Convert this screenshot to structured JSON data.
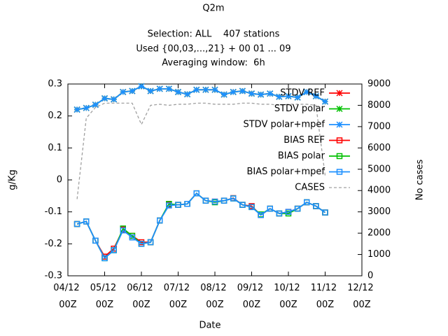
{
  "chart_data": {
    "type": "line",
    "title": "Q2m",
    "subtitles": [
      "Selection: ALL    407 stations",
      "Used {00,03,...,21} + 00 01 ... 09",
      "Averaging window:  6h"
    ],
    "x_label": "Date",
    "y_label": "g/Kg",
    "y2_label": "No cases",
    "x": [
      0.25,
      0.5,
      0.75,
      1,
      1.25,
      1.5,
      1.75,
      2,
      2.25,
      2.5,
      2.75,
      3,
      3.25,
      3.5,
      3.75,
      4,
      4.25,
      4.5,
      4.75,
      5,
      5.25,
      5.5,
      5.75,
      6,
      6.25,
      6.5,
      6.75,
      7
    ],
    "xlim": [
      0,
      8
    ],
    "xticks": [
      {
        "value": 0,
        "label": "04/12 00Z"
      },
      {
        "value": 1,
        "label": "05/12 00Z"
      },
      {
        "value": 2,
        "label": "06/12 00Z"
      },
      {
        "value": 3,
        "label": "07/12 00Z"
      },
      {
        "value": 4,
        "label": "08/12 00Z"
      },
      {
        "value": 5,
        "label": "09/12 00Z"
      },
      {
        "value": 6,
        "label": "10/12 00Z"
      },
      {
        "value": 7,
        "label": "11/12 00Z"
      },
      {
        "value": 8,
        "label": "12/12 00Z"
      }
    ],
    "ylim": [
      -0.3,
      0.3
    ],
    "yticks": [
      -0.3,
      -0.2,
      -0.1,
      0,
      0.1,
      0.2,
      0.3
    ],
    "y2lim": [
      0,
      9000
    ],
    "y2ticks": [
      0,
      1000,
      2000,
      3000,
      4000,
      5000,
      6000,
      7000,
      8000,
      9000
    ],
    "legend": "top-right",
    "grid": false,
    "series": [
      {
        "name": "STDV REF",
        "color": "#ff0000",
        "marker": "cross",
        "values": [
          0.22,
          0.225,
          0.235,
          0.255,
          0.252,
          0.275,
          0.278,
          0.293,
          0.278,
          0.285,
          0.285,
          0.275,
          0.268,
          0.282,
          0.282,
          0.282,
          0.267,
          0.275,
          0.278,
          0.27,
          0.267,
          0.27,
          0.26,
          0.262,
          0.258,
          0.275,
          0.262,
          0.245
        ]
      },
      {
        "name": "STDV polar",
        "color": "#00c000",
        "marker": "cross",
        "values": [
          0.22,
          0.225,
          0.235,
          0.255,
          0.252,
          0.275,
          0.278,
          0.293,
          0.278,
          0.285,
          0.285,
          0.275,
          0.268,
          0.282,
          0.282,
          0.282,
          0.267,
          0.275,
          0.278,
          0.27,
          0.267,
          0.27,
          0.26,
          0.262,
          0.258,
          0.275,
          0.262,
          0.245
        ]
      },
      {
        "name": "STDV polar+mpef",
        "color": "#1e90ff",
        "marker": "cross",
        "values": [
          0.22,
          0.225,
          0.235,
          0.255,
          0.252,
          0.275,
          0.278,
          0.293,
          0.278,
          0.285,
          0.285,
          0.275,
          0.268,
          0.282,
          0.282,
          0.282,
          0.267,
          0.275,
          0.278,
          0.27,
          0.267,
          0.27,
          0.26,
          0.262,
          0.258,
          0.275,
          0.262,
          0.245
        ]
      },
      {
        "name": "BIAS REF",
        "color": "#ff0000",
        "marker": "square",
        "values": [
          -0.138,
          -0.13,
          -0.19,
          -0.24,
          -0.215,
          -0.155,
          -0.175,
          -0.195,
          -0.195,
          -0.127,
          -0.077,
          -0.078,
          -0.075,
          -0.042,
          -0.065,
          -0.068,
          -0.065,
          -0.057,
          -0.078,
          -0.082,
          -0.11,
          -0.09,
          -0.105,
          -0.1,
          -0.09,
          -0.07,
          -0.082,
          -0.102
        ]
      },
      {
        "name": "BIAS polar",
        "color": "#00c000",
        "marker": "square",
        "values": [
          -0.138,
          -0.13,
          -0.19,
          -0.245,
          -0.22,
          -0.152,
          -0.175,
          -0.2,
          -0.195,
          -0.127,
          -0.075,
          -0.078,
          -0.075,
          -0.042,
          -0.065,
          -0.07,
          -0.065,
          -0.058,
          -0.078,
          -0.085,
          -0.108,
          -0.09,
          -0.105,
          -0.105,
          -0.09,
          -0.07,
          -0.082,
          -0.102
        ]
      },
      {
        "name": "BIAS polar+mpef",
        "color": "#1e90ff",
        "marker": "square",
        "values": [
          -0.138,
          -0.13,
          -0.19,
          -0.245,
          -0.22,
          -0.158,
          -0.18,
          -0.2,
          -0.195,
          -0.127,
          -0.08,
          -0.078,
          -0.075,
          -0.042,
          -0.065,
          -0.068,
          -0.065,
          -0.058,
          -0.078,
          -0.085,
          -0.11,
          -0.09,
          -0.105,
          -0.1,
          -0.09,
          -0.07,
          -0.082,
          -0.102
        ]
      },
      {
        "name": "CASES",
        "color": "#a0a0a0",
        "marker": "none",
        "axis": "y2",
        "dash": true,
        "values": [
          3600,
          7400,
          7900,
          8100,
          8100,
          8100,
          8100,
          7100,
          8000,
          8050,
          8000,
          8050,
          8050,
          8100,
          8100,
          8050,
          8050,
          8050,
          8100,
          8100,
          8050,
          8050,
          8000,
          8050,
          8050,
          8050,
          8000,
          4700
        ]
      }
    ]
  }
}
